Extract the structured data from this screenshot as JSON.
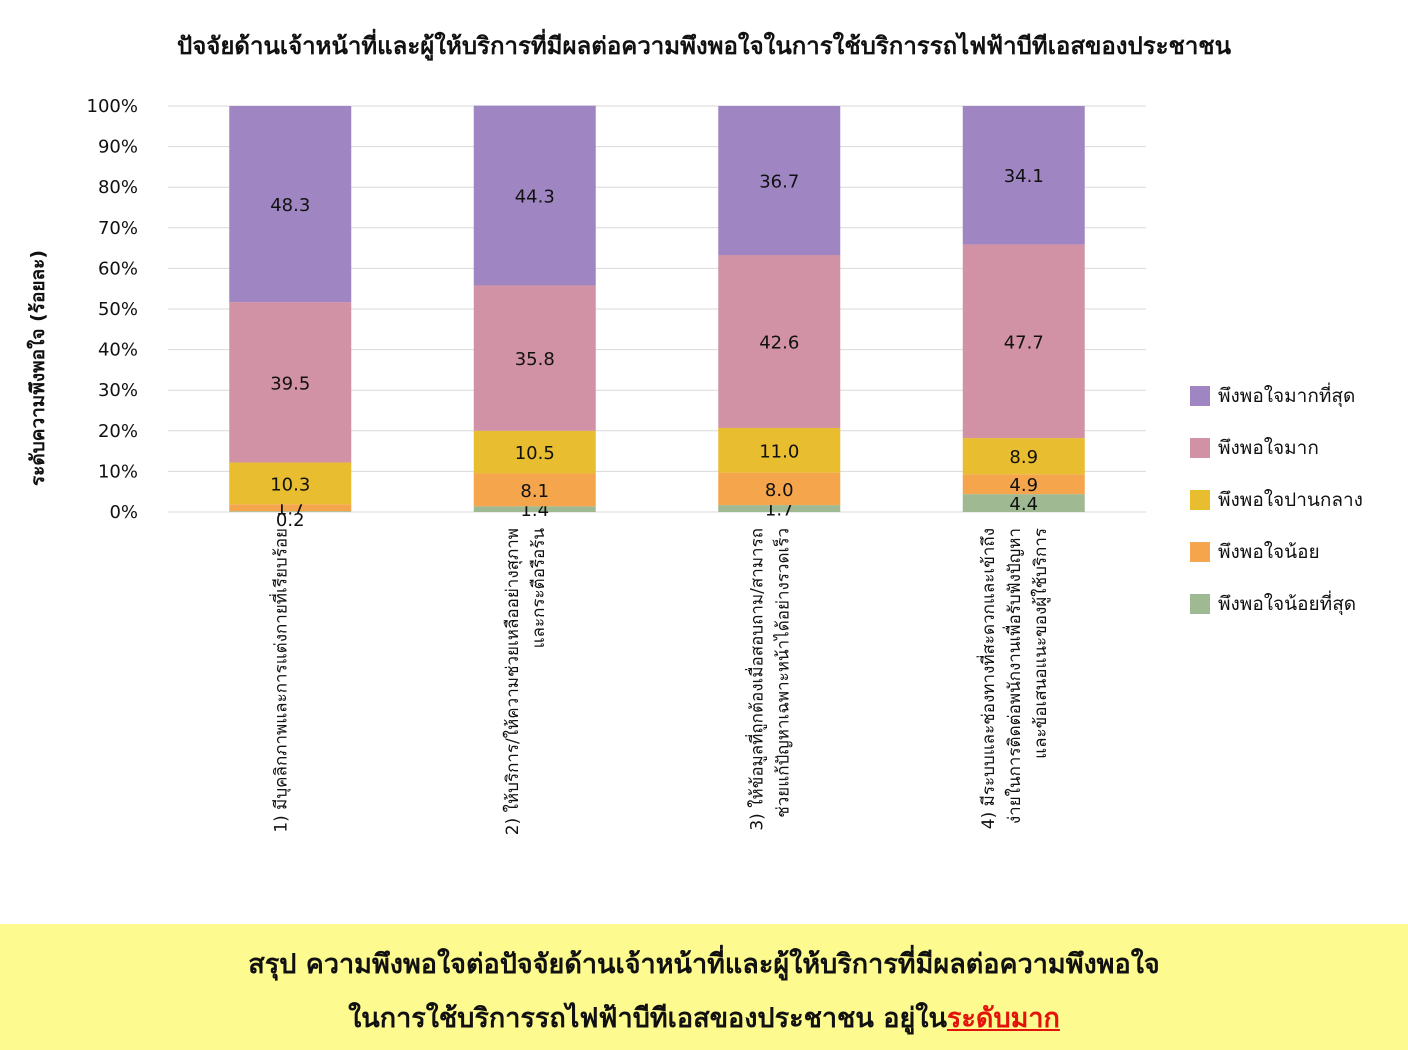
{
  "title": "ปัจจัยด้านเจ้าหน้าที่และผู้ให้บริการที่มีผลต่อความพึงพอใจในการใช้บริการรถไฟฟ้าบีทีเอสของประชาชน",
  "summary": {
    "line1": "สรุป ความพึงพอใจต่อปัจจัยด้านเจ้าหน้าที่และผู้ให้บริการที่มีผลต่อความพึงพอใจ",
    "line2_prefix": "ในการใช้บริการรถไฟฟ้าบีทีเอสของประชาชน อยู่ใน",
    "line2_highlight": "ระดับมาก"
  },
  "chart_data": {
    "type": "bar",
    "stacked": true,
    "title": "ปัจจัยด้านเจ้าหน้าที่และผู้ให้บริการที่มีผลต่อความพึงพอใจในการใช้บริการรถไฟฟ้าบีทีเอสของประชาชน",
    "ylabel": "ระดับความพึงพอใจ (ร้อยละ)",
    "ylim": [
      0,
      100
    ],
    "yticks": [
      "0%",
      "10%",
      "20%",
      "30%",
      "40%",
      "50%",
      "60%",
      "70%",
      "80%",
      "90%",
      "100%"
    ],
    "grid": true,
    "legend_position": "right",
    "categories": [
      [
        "1) มีบุคลิกภาพและการแต่งกายที่เรียบร้อย"
      ],
      [
        "2) ให้บริการ/ให้ความช่วยเหลืออย่างสุภาพ",
        "และกระตือรือร้น"
      ],
      [
        "3) ให้ข้อมูลที่ถูกต้องเมื่อสอบถาม/สามารถ",
        "ช่วยแก้ปัญหาเฉพาะหน้าได้อย่างรวดเร็ว"
      ],
      [
        "4) มีระบบและช่องทางที่สะดวกและเข้าถึง",
        "ง่ายในการติดต่อพนักงานเพื่อรับฟังปัญหา",
        "และข้อเสนอแนะของผู้ใช้บริการ"
      ]
    ],
    "series": [
      {
        "name": "พึงพอใจน้อยที่สุด",
        "color": "#9fb993",
        "values": [
          0.2,
          1.4,
          1.7,
          4.4
        ]
      },
      {
        "name": "พึงพอใจน้อย",
        "color": "#f5a54b",
        "values": [
          1.7,
          8.1,
          8.0,
          4.9
        ]
      },
      {
        "name": "พึงพอใจปานกลาง",
        "color": "#e8bd2f",
        "values": [
          10.3,
          10.5,
          11.0,
          8.9
        ]
      },
      {
        "name": "พึงพอใจมาก",
        "color": "#d192a6",
        "values": [
          39.5,
          35.8,
          42.6,
          47.7
        ]
      },
      {
        "name": "พึงพอใจมากที่สุด",
        "color": "#9f86c2",
        "values": [
          48.3,
          44.3,
          36.7,
          34.1
        ]
      }
    ]
  }
}
